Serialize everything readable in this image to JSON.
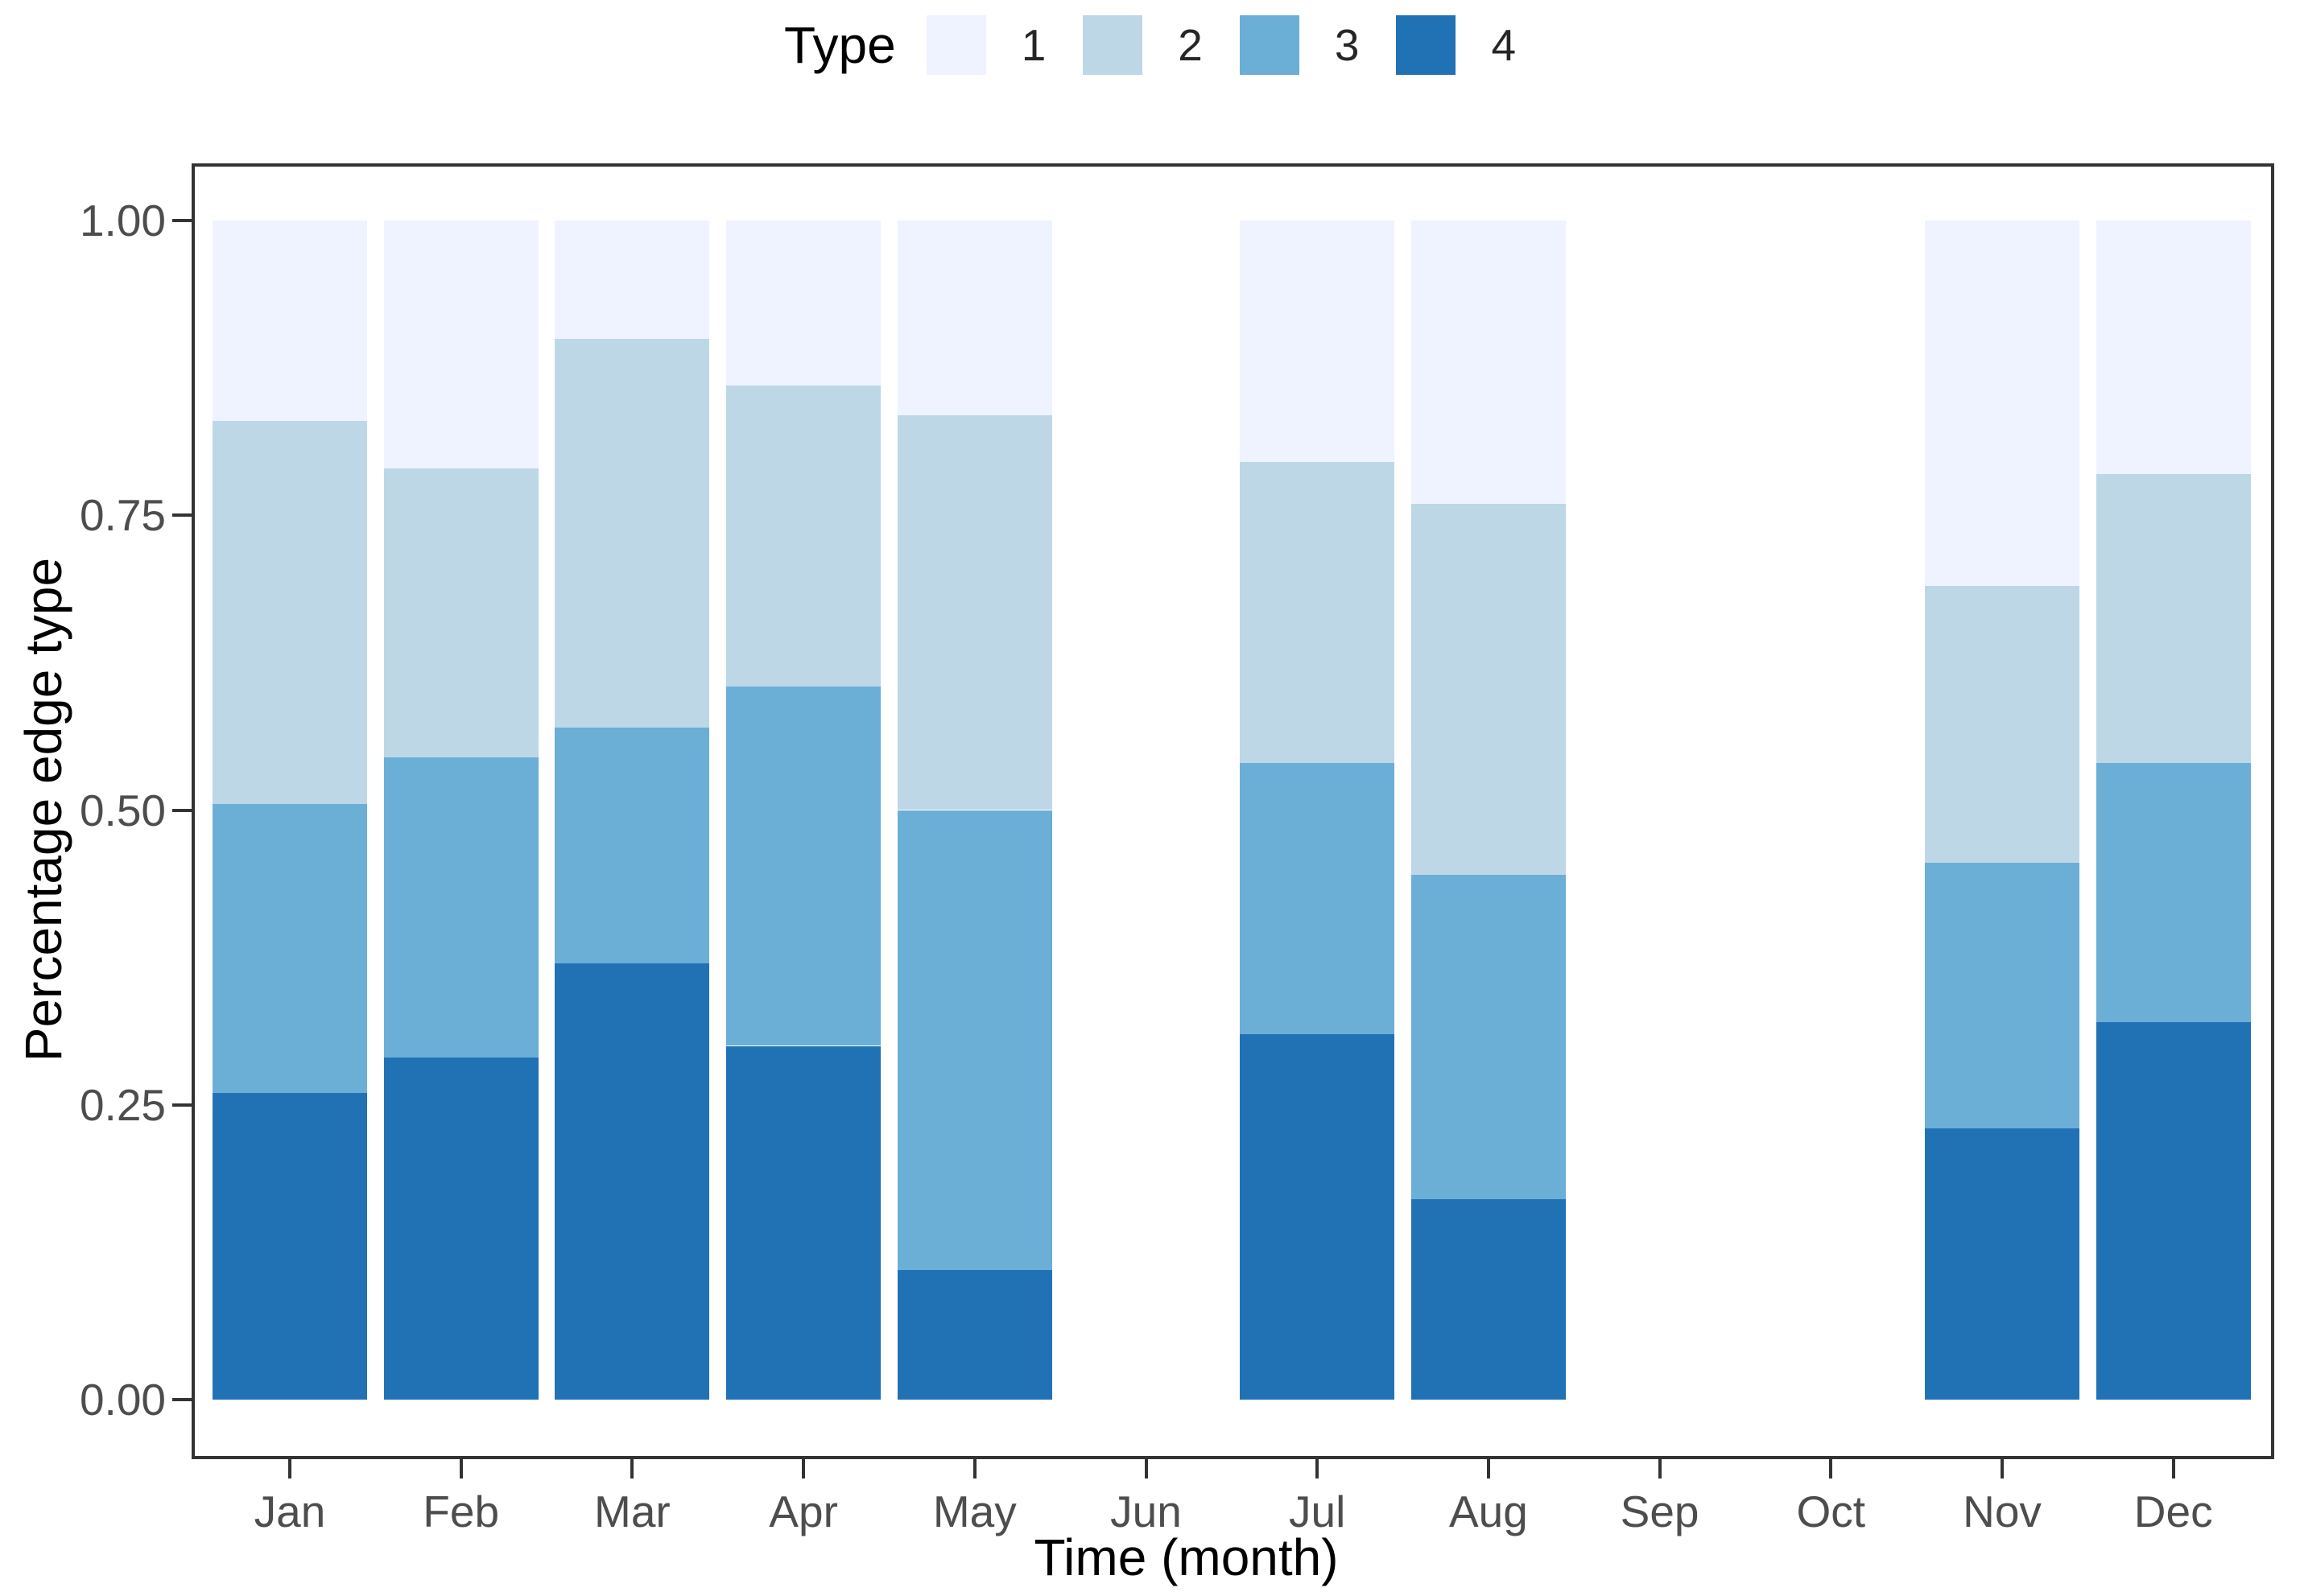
{
  "chart_data": {
    "type": "bar",
    "stacked": true,
    "percent_scale": true,
    "legend_title": "Type",
    "legend_entries": [
      "1",
      "2",
      "3",
      "4"
    ],
    "legend_position": "top",
    "colors": {
      "1": "#EFF3FF",
      "2": "#BDD7E7",
      "3": "#6BAED6",
      "4": "#2171B5"
    },
    "stack_order_bottom_to_top": [
      "4",
      "3",
      "2",
      "1"
    ],
    "categories": [
      "Jan",
      "Feb",
      "Mar",
      "Apr",
      "May",
      "Jun",
      "Jul",
      "Aug",
      "Sep",
      "Oct",
      "Nov",
      "Dec"
    ],
    "series": [
      {
        "name": "4",
        "values": [
          0.26,
          0.29,
          0.37,
          0.3,
          0.11,
          null,
          0.31,
          0.17,
          null,
          null,
          0.23,
          0.32
        ]
      },
      {
        "name": "3",
        "values": [
          0.245,
          0.255,
          0.2,
          0.305,
          0.39,
          null,
          0.23,
          0.275,
          null,
          null,
          0.225,
          0.22
        ]
      },
      {
        "name": "2",
        "values": [
          0.325,
          0.245,
          0.33,
          0.255,
          0.335,
          null,
          0.255,
          0.315,
          null,
          null,
          0.235,
          0.245
        ]
      },
      {
        "name": "1",
        "values": [
          0.17,
          0.21,
          0.1,
          0.14,
          0.165,
          null,
          0.205,
          0.24,
          null,
          null,
          0.31,
          0.215
        ]
      }
    ],
    "xlabel": "Time (month)",
    "ylabel": "Percentage edge type",
    "yticks": [
      "0.00",
      "0.25",
      "0.50",
      "0.75",
      "1.00"
    ],
    "ytick_values": [
      0.0,
      0.25,
      0.5,
      0.75,
      1.0
    ],
    "ylim": [
      0,
      1
    ],
    "grid": false,
    "panel_border_color": "#333333",
    "axis_text_color": "#4d4d4d"
  }
}
